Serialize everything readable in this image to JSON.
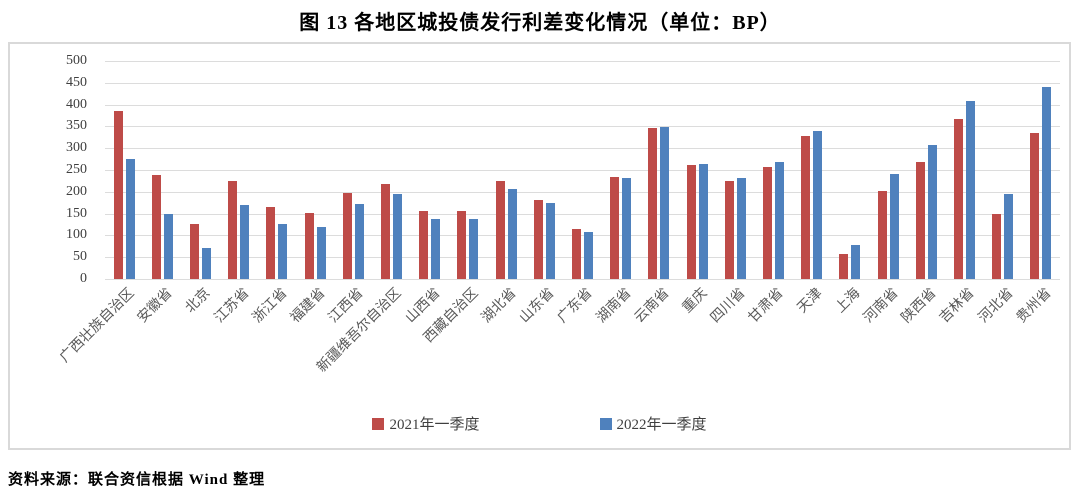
{
  "title": "图 13  各地区城投债发行利差变化情况（单位：BP）",
  "source_note": "资料来源：联合资信根据 Wind 整理",
  "colors": {
    "series_2021": "#be4b48",
    "series_2022": "#4f81bd",
    "gridline": "#dcdcdc",
    "chart_border": "#d9d9d9",
    "axis_text": "#595959"
  },
  "legend": {
    "items": [
      {
        "label": "2021年一季度",
        "color": "#be4b48"
      },
      {
        "label": "2022年一季度",
        "color": "#4f81bd"
      }
    ],
    "position": "bottom"
  },
  "chart_data": {
    "type": "bar",
    "title": "图 13  各地区城投债发行利差变化情况（单位：BP）",
    "xlabel": "",
    "ylabel": "",
    "ylim": [
      0,
      500
    ],
    "ytick_step": 50,
    "grid": true,
    "legend_position": "bottom",
    "categories": [
      "广西壮族自治区",
      "安徽省",
      "北京",
      "江苏省",
      "浙江省",
      "福建省",
      "江西省",
      "新疆维吾尔自治区",
      "山西省",
      "西藏自治区",
      "湖北省",
      "山东省",
      "广东省",
      "湖南省",
      "云南省",
      "重庆",
      "四川省",
      "甘肃省",
      "天津",
      "上海",
      "河南省",
      "陕西省",
      "吉林省",
      "河北省",
      "贵州省"
    ],
    "series": [
      {
        "name": "2021年一季度",
        "color": "#be4b48",
        "values": [
          386,
          238,
          126,
          225,
          165,
          152,
          198,
          217,
          157,
          155,
          225,
          181,
          114,
          234,
          347,
          261,
          225,
          258,
          327,
          57,
          203,
          268,
          366,
          149,
          334
        ]
      },
      {
        "name": "2022年一季度",
        "color": "#4f81bd",
        "values": [
          275,
          148,
          70,
          170,
          127,
          119,
          173,
          194,
          138,
          138,
          207,
          175,
          107,
          232,
          349,
          264,
          231,
          268,
          340,
          77,
          240,
          308,
          408,
          194,
          440
        ]
      }
    ]
  }
}
